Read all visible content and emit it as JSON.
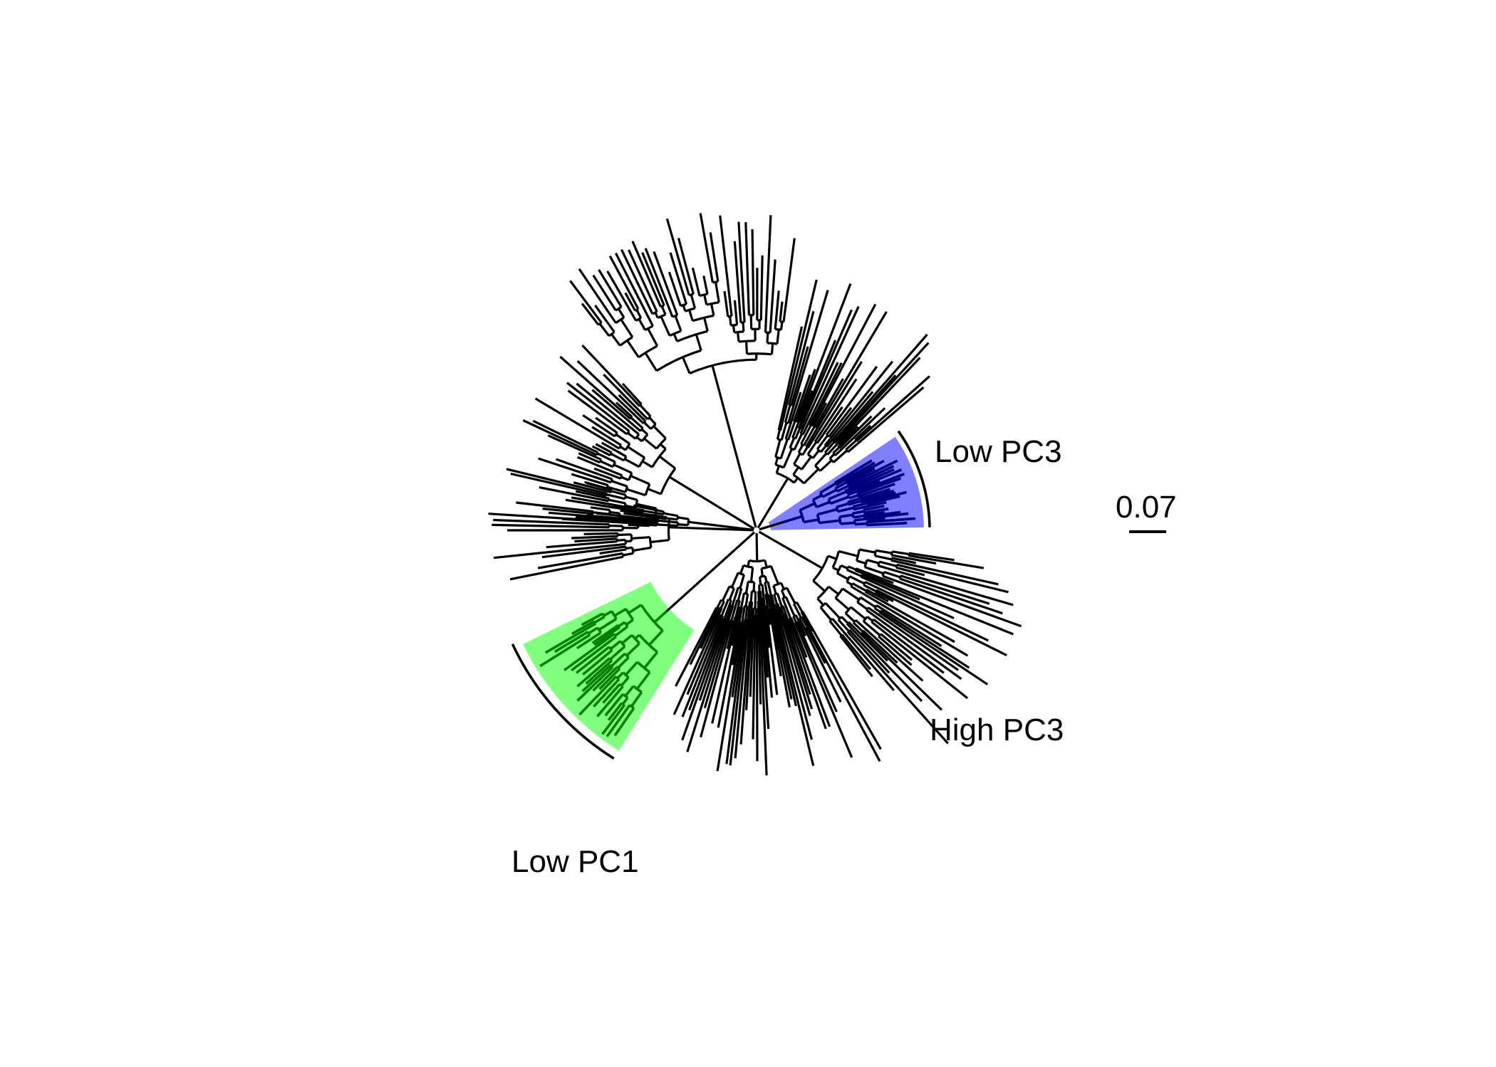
{
  "figure": {
    "type": "circular phylogenetic tree",
    "background": "#ffffff",
    "branch_color": "#000000"
  },
  "clades": [
    {
      "id": "low-pc3",
      "label": "Low PC3",
      "fill": "#8080ff",
      "branch_color": "#00007f",
      "highlighted": true
    },
    {
      "id": "high-pc3",
      "label": "High PC3",
      "highlighted": false
    },
    {
      "id": "low-pc1",
      "label": "Low PC1",
      "fill": "#80ff80",
      "branch_color": "#007f00",
      "highlighted": true
    }
  ],
  "scale_bar": {
    "label": "0.07",
    "branch_length": 0.07
  }
}
